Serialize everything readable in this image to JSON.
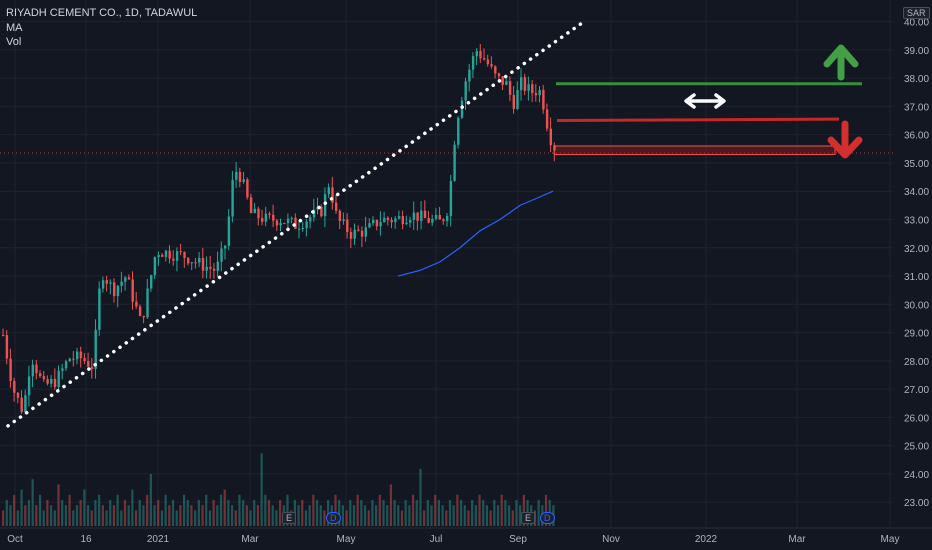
{
  "header": {
    "symbol_line": "RIYADH CEMENT CO., 1D, TADAWUL",
    "indicator_ma": "MA",
    "indicator_vol": "Vol"
  },
  "currency_label": "SAR",
  "markers": {
    "earnings": "E",
    "dividend": "D"
  },
  "colors": {
    "background": "#131722",
    "up": "#26a69a",
    "down": "#ef5350",
    "ma": "#2962ff",
    "trendline": "#ffffff",
    "resistance": "#388e3c",
    "support": "#c62828",
    "zone": "#b71c1c",
    "arrow_up": "#43a047",
    "arrow_down": "#d32f2f",
    "arrow_horizontal": "#ffffff",
    "grid": "#1f2330",
    "axis_text": "#b2b5be"
  },
  "chart_data": {
    "type": "candlestick",
    "title": "RIYADH CEMENT CO., 1D, TADAWUL",
    "currency": "SAR",
    "x_tick_labels": [
      "Oct",
      "16",
      "2021",
      "Mar",
      "May",
      "Jul",
      "Sep",
      "Nov",
      "2022",
      "Mar",
      "May"
    ],
    "y_tick_labels": [
      "23.00",
      "24.00",
      "25.00",
      "26.00",
      "27.00",
      "28.00",
      "29.00",
      "30.00",
      "31.00",
      "32.00",
      "33.00",
      "34.00",
      "35.00",
      "36.00",
      "37.00",
      "38.00",
      "39.00",
      "40.00"
    ],
    "ylim": [
      22.3,
      40.5
    ],
    "price_close_path": [
      [
        0,
        29.3
      ],
      [
        12,
        27.0
      ],
      [
        22,
        26.2
      ],
      [
        30,
        28.2
      ],
      [
        42,
        27.1
      ],
      [
        55,
        27.3
      ],
      [
        68,
        28.1
      ],
      [
        80,
        28.1
      ],
      [
        92,
        27.8
      ],
      [
        100,
        31.2
      ],
      [
        112,
        30.5
      ],
      [
        125,
        31.0
      ],
      [
        140,
        29.3
      ],
      [
        155,
        31.9
      ],
      [
        170,
        31.8
      ],
      [
        185,
        31.7
      ],
      [
        200,
        31.4
      ],
      [
        215,
        31.2
      ],
      [
        225,
        32.2
      ],
      [
        233,
        34.8
      ],
      [
        240,
        34.5
      ],
      [
        250,
        33.2
      ],
      [
        265,
        33.0
      ],
      [
        280,
        33.0
      ],
      [
        295,
        32.8
      ],
      [
        310,
        33.1
      ],
      [
        320,
        33.3
      ],
      [
        328,
        34.3
      ],
      [
        336,
        33.0
      ],
      [
        350,
        32.5
      ],
      [
        365,
        32.6
      ],
      [
        380,
        33.0
      ],
      [
        395,
        33.0
      ],
      [
        410,
        33.2
      ],
      [
        425,
        33.0
      ],
      [
        440,
        32.9
      ],
      [
        448,
        33.5
      ],
      [
        452,
        35.5
      ],
      [
        458,
        37.0
      ],
      [
        465,
        38.0
      ],
      [
        475,
        39.0
      ],
      [
        485,
        38.6
      ],
      [
        495,
        38.0
      ],
      [
        505,
        37.8
      ],
      [
        512,
        37.1
      ],
      [
        520,
        37.8
      ],
      [
        530,
        37.5
      ],
      [
        538,
        37.6
      ],
      [
        543,
        37.0
      ],
      [
        548,
        36.0
      ],
      [
        552,
        35.7
      ],
      [
        555,
        35.4
      ]
    ],
    "ma_path": [
      [
        398,
        31.0
      ],
      [
        420,
        31.2
      ],
      [
        440,
        31.5
      ],
      [
        460,
        32.0
      ],
      [
        480,
        32.6
      ],
      [
        500,
        33.0
      ],
      [
        520,
        33.5
      ],
      [
        540,
        33.8
      ],
      [
        553,
        34.0
      ]
    ],
    "trendline": [
      [
        8,
        25.7
      ],
      [
        584,
        40.0
      ]
    ],
    "resistance_line": {
      "price": 37.8,
      "x_range": [
        556,
        862
      ]
    },
    "support_line": {
      "price_start": 36.5,
      "price_end": 36.55,
      "x_range": [
        557,
        839
      ]
    },
    "support_zone": {
      "price_top": 35.6,
      "price_bottom": 35.3,
      "x_range": [
        554,
        835
      ]
    },
    "current_price_line": 35.35,
    "volume_profile": [
      3,
      5,
      4,
      6,
      3,
      7,
      4,
      5,
      9,
      4,
      6,
      3,
      5,
      4,
      3,
      8,
      5,
      4,
      6,
      3,
      4,
      5,
      7,
      4,
      3,
      5,
      6,
      4,
      3,
      5,
      4,
      6,
      3,
      5,
      4,
      7,
      3,
      5,
      4,
      6,
      10,
      4,
      5,
      3,
      6,
      4,
      5,
      3,
      4,
      6,
      5,
      4,
      3,
      5,
      4,
      6,
      3,
      5,
      4,
      6,
      7,
      5,
      4,
      3,
      6,
      5,
      4,
      3,
      5,
      4,
      14,
      6,
      5,
      4,
      3,
      5,
      4,
      6,
      3,
      5,
      4,
      5,
      3,
      4,
      6,
      5,
      4,
      3,
      5,
      4,
      6,
      5,
      4,
      3,
      5,
      4,
      6,
      5,
      4,
      3,
      5,
      4,
      6,
      5,
      4,
      8,
      5,
      4,
      3,
      5,
      4,
      6,
      5,
      11,
      3,
      5,
      4,
      6,
      5,
      4,
      3,
      5,
      4,
      6,
      5,
      4,
      3,
      5,
      4,
      6,
      5,
      4,
      3,
      5,
      4,
      6,
      5,
      4,
      3,
      5,
      4,
      6,
      5,
      4,
      3,
      5,
      4,
      6,
      5,
      4
    ]
  }
}
